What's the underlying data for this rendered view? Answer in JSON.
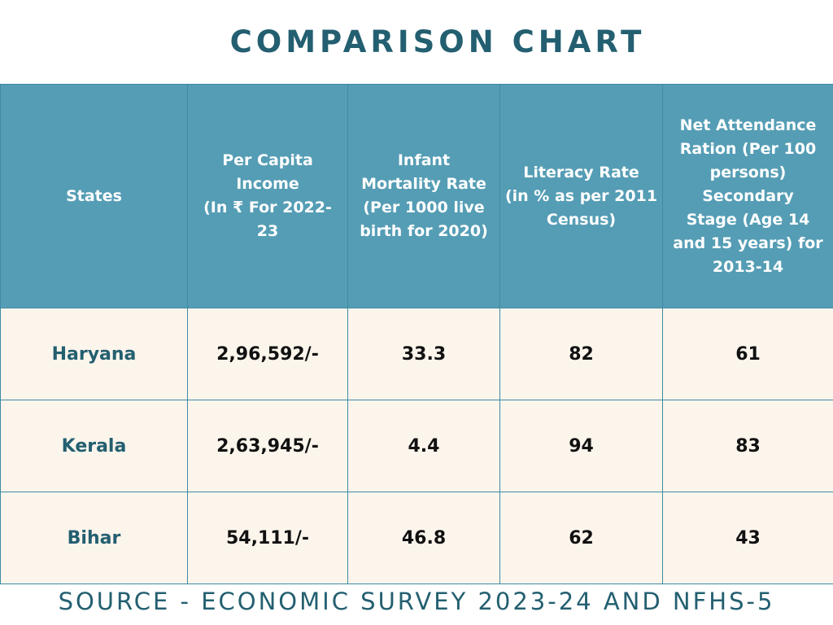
{
  "title": "COMPARISON CHART",
  "table": {
    "headers": [
      "States",
      "Per Capita\nIncome\n(In ₹ For 2022-\n23",
      "Infant\nMortality Rate\n(Per 1000 live\nbirth for 2020)",
      "Literacy Rate\n(in % as per 2011\nCensus)",
      "Net Attendance\nRation (Per 100\npersons)\nSecondary\nStage (Age 14\nand 15 years) for\n2013-14"
    ],
    "rows": [
      {
        "state": "Haryana",
        "income": "2,96,592/-",
        "imr": "33.3",
        "literacy": "82",
        "attendance": "61"
      },
      {
        "state": "Kerala",
        "income": "2,63,945/-",
        "imr": "4.4",
        "literacy": "94",
        "attendance": "83"
      },
      {
        "state": "Bihar",
        "income": "54,111/-",
        "imr": "46.8",
        "literacy": "62",
        "attendance": "43"
      }
    ]
  },
  "source": "SOURCE - ECONOMIC SURVEY 2023-24 AND NFHS-5",
  "colors": {
    "title": "#235f70",
    "header_bg": "#559db5",
    "header_text": "#ffffff",
    "cell_bg": "#fcf5ec",
    "border": "#3f8aa3"
  }
}
